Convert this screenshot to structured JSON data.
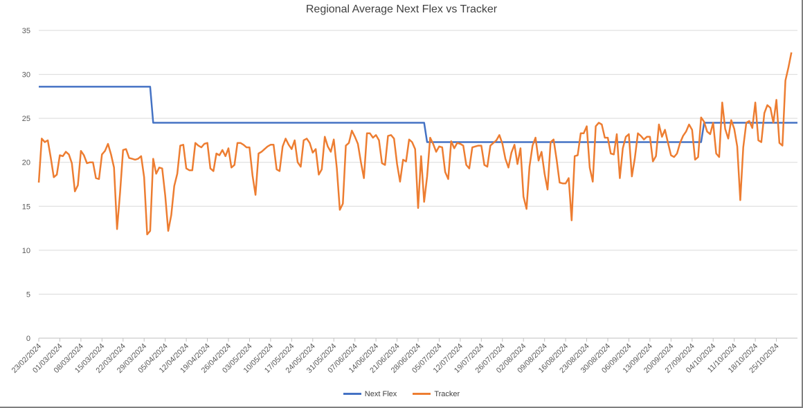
{
  "chart_data": {
    "type": "line",
    "title": "Regional Average Next Flex vs Tracker",
    "xlabel": "",
    "ylabel": "",
    "ylim": [
      0,
      35
    ],
    "yticks": [
      0,
      5,
      10,
      15,
      20,
      25,
      30,
      35
    ],
    "grid": true,
    "legend_position": "bottom",
    "x_start": "23/02/2024",
    "x_end": "01/11/2024",
    "x_tick_labels": [
      "23/02/2024",
      "01/03/2024",
      "08/03/2024",
      "15/03/2024",
      "22/03/2024",
      "29/03/2024",
      "05/04/2024",
      "12/04/2024",
      "19/04/2024",
      "26/04/2024",
      "03/05/2024",
      "10/05/2024",
      "17/05/2024",
      "24/05/2024",
      "31/05/2024",
      "07/06/2024",
      "14/06/2024",
      "21/06/2024",
      "28/06/2024",
      "05/07/2024",
      "12/07/2024",
      "19/07/2024",
      "26/07/2024",
      "02/08/2024",
      "09/08/2024",
      "16/08/2024",
      "23/08/2024",
      "30/08/2024",
      "06/09/2024",
      "13/09/2024",
      "20/09/2024",
      "27/09/2024",
      "04/10/2024",
      "11/10/2024",
      "18/10/2024",
      "25/10/2024"
    ],
    "series": [
      {
        "name": "Next Flex",
        "color": "#4472c4",
        "points": [
          [
            "23/02/2024",
            28.6
          ],
          [
            "31/03/2024",
            28.6
          ],
          [
            "01/04/2024",
            24.5
          ],
          [
            "30/06/2024",
            24.5
          ],
          [
            "01/07/2024",
            22.3
          ],
          [
            "30/09/2024",
            22.3
          ],
          [
            "01/10/2024",
            24.5
          ],
          [
            "01/11/2024",
            24.5
          ]
        ]
      },
      {
        "name": "Tracker",
        "color": "#ed7d31",
        "start": "23/02/2024",
        "values": [
          17.7,
          22.7,
          22.3,
          22.5,
          20.5,
          18.3,
          18.6,
          20.8,
          20.7,
          21.2,
          20.9,
          19.9,
          16.7,
          17.4,
          21.3,
          20.8,
          19.9,
          20.0,
          20.0,
          18.2,
          18.1,
          20.9,
          21.3,
          22.1,
          20.9,
          19.4,
          12.4,
          16.5,
          21.4,
          21.5,
          20.5,
          20.4,
          20.3,
          20.4,
          20.7,
          18.3,
          11.8,
          12.2,
          20.4,
          18.7,
          19.4,
          19.3,
          16.2,
          12.2,
          14.0,
          17.3,
          18.7,
          21.9,
          22.0,
          19.3,
          19.1,
          19.1,
          22.2,
          21.9,
          21.7,
          22.1,
          22.2,
          19.3,
          19.0,
          21.0,
          20.8,
          21.4,
          20.7,
          21.6,
          19.4,
          19.7,
          22.2,
          22.2,
          22.0,
          21.7,
          21.7,
          18.5,
          16.3,
          21.0,
          21.2,
          21.5,
          21.8,
          22.0,
          22.0,
          19.2,
          19.0,
          21.8,
          22.7,
          22.0,
          21.5,
          22.5,
          20.0,
          19.5,
          22.5,
          22.7,
          22.2,
          21.1,
          21.5,
          18.6,
          19.2,
          22.9,
          21.8,
          21.2,
          22.6,
          19.3,
          14.6,
          15.3,
          21.9,
          22.2,
          23.6,
          22.9,
          22.1,
          20.0,
          18.2,
          23.3,
          23.3,
          22.8,
          23.1,
          22.5,
          19.9,
          19.7,
          23.0,
          23.1,
          22.7,
          19.8,
          17.8,
          20.3,
          20.1,
          22.6,
          22.3,
          21.5,
          14.8,
          20.7,
          15.5,
          18.4,
          22.8,
          22.1,
          21.2,
          21.8,
          21.7,
          18.9,
          18.1,
          22.4,
          21.6,
          22.2,
          22.1,
          21.9,
          19.7,
          19.3,
          21.7,
          21.8,
          21.9,
          21.9,
          19.7,
          19.5,
          21.9,
          22.2,
          22.5,
          23.1,
          22.1,
          20.4,
          19.4,
          21.1,
          22.0,
          19.8,
          21.6,
          16.1,
          14.7,
          19.5,
          21.9,
          22.8,
          20.2,
          21.2,
          18.7,
          16.9,
          22.3,
          22.6,
          20.3,
          17.7,
          17.6,
          17.6,
          18.2,
          13.4,
          20.7,
          20.8,
          23.3,
          23.3,
          24.1,
          19.4,
          17.8,
          24.1,
          24.5,
          24.3,
          22.8,
          22.8,
          21.0,
          20.9,
          23.2,
          18.2,
          21.6,
          22.9,
          23.2,
          18.4,
          20.5,
          23.3,
          23.0,
          22.6,
          22.9,
          22.9,
          20.1,
          20.7,
          24.3,
          22.9,
          23.7,
          22.2,
          20.8,
          20.6,
          21.0,
          22.2,
          23.0,
          23.5,
          24.3,
          23.7,
          20.3,
          20.6,
          25.1,
          24.6,
          23.5,
          23.2,
          24.5,
          21.0,
          20.6,
          26.8,
          23.8,
          22.7,
          24.8,
          23.8,
          21.8,
          15.7,
          21.7,
          24.5,
          24.7,
          23.9,
          26.8,
          22.5,
          22.3,
          25.6,
          26.5,
          26.2,
          24.5,
          27.1,
          22.2,
          21.9,
          29.3,
          30.8,
          32.5
        ]
      }
    ]
  },
  "legend": {
    "next_flex": "Next Flex",
    "tracker": "Tracker"
  }
}
